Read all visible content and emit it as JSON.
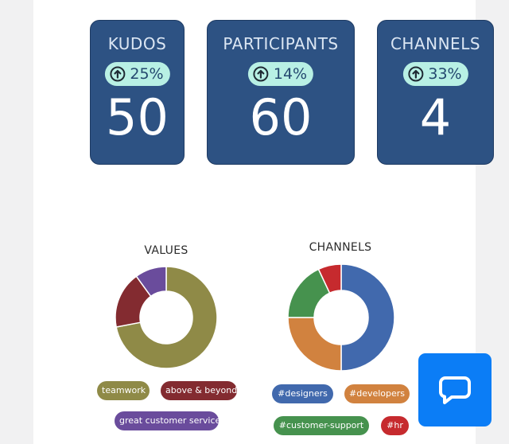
{
  "stats": [
    {
      "title": "KUDOS",
      "change": "25%",
      "value": "50"
    },
    {
      "title": "PARTICIPANTS",
      "change": "14%",
      "value": "60"
    },
    {
      "title": "CHANNELS",
      "change": "33%",
      "value": "4"
    }
  ],
  "icons": {
    "trend": "arrow-up-circle-icon",
    "chat": "chat-bubble-icon"
  },
  "colors": {
    "stat_bg": "#2d5283",
    "badge_bg": "#b8f0e4",
    "chat_button": "#0b7df6"
  },
  "chart_data": [
    {
      "type": "pie",
      "title": "VALUES",
      "categories": [
        "teamwork",
        "above & beyond",
        "great customer service"
      ],
      "values": [
        72,
        18,
        10
      ],
      "colors": [
        "#8f8a47",
        "#832b30",
        "#6a4c9c"
      ]
    },
    {
      "type": "pie",
      "title": "CHANNELS",
      "categories": [
        "#designers",
        "#developers",
        "#customer-support",
        "#hr"
      ],
      "values": [
        50,
        25,
        18,
        7
      ],
      "colors": [
        "#4169ad",
        "#d1823f",
        "#46924e",
        "#c62a2e"
      ]
    }
  ]
}
